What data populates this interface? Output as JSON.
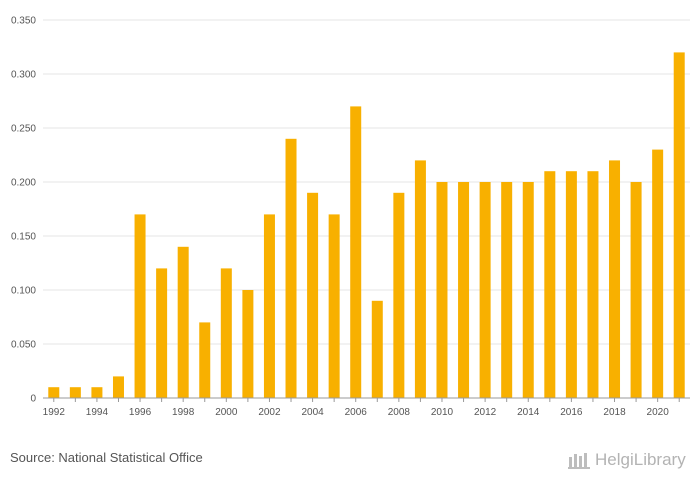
{
  "chart_data": {
    "type": "bar",
    "title": "",
    "xlabel": "",
    "ylabel": "",
    "ylim": [
      0,
      0.35
    ],
    "yticks": [
      "0",
      "0.050",
      "0.100",
      "0.150",
      "0.200",
      "0.250",
      "0.300",
      "0.350"
    ],
    "ytick_values": [
      0,
      0.05,
      0.1,
      0.15,
      0.2,
      0.25,
      0.3,
      0.35
    ],
    "categories": [
      1992,
      1993,
      1994,
      1995,
      1996,
      1997,
      1998,
      1999,
      2000,
      2001,
      2002,
      2003,
      2004,
      2005,
      2006,
      2007,
      2008,
      2009,
      2010,
      2011,
      2012,
      2013,
      2014,
      2015,
      2016,
      2017,
      2018,
      2019,
      2020,
      2021
    ],
    "xtick_labels": [
      "1992",
      "1994",
      "1996",
      "1998",
      "2000",
      "2002",
      "2004",
      "2006",
      "2008",
      "2010",
      "2012",
      "2014",
      "2016",
      "2018",
      "2020"
    ],
    "values": [
      0.01,
      0.01,
      0.01,
      0.02,
      0.17,
      0.12,
      0.14,
      0.07,
      0.12,
      0.1,
      0.17,
      0.24,
      0.19,
      0.17,
      0.27,
      0.09,
      0.19,
      0.22,
      0.2,
      0.2,
      0.2,
      0.2,
      0.2,
      0.21,
      0.21,
      0.21,
      0.22,
      0.2,
      0.23,
      0.32
    ],
    "bar_color": "#f8b000",
    "grid": true
  },
  "footer": {
    "source": "Source: National Statistical Office",
    "logo_text": "HelgiLibrary"
  }
}
